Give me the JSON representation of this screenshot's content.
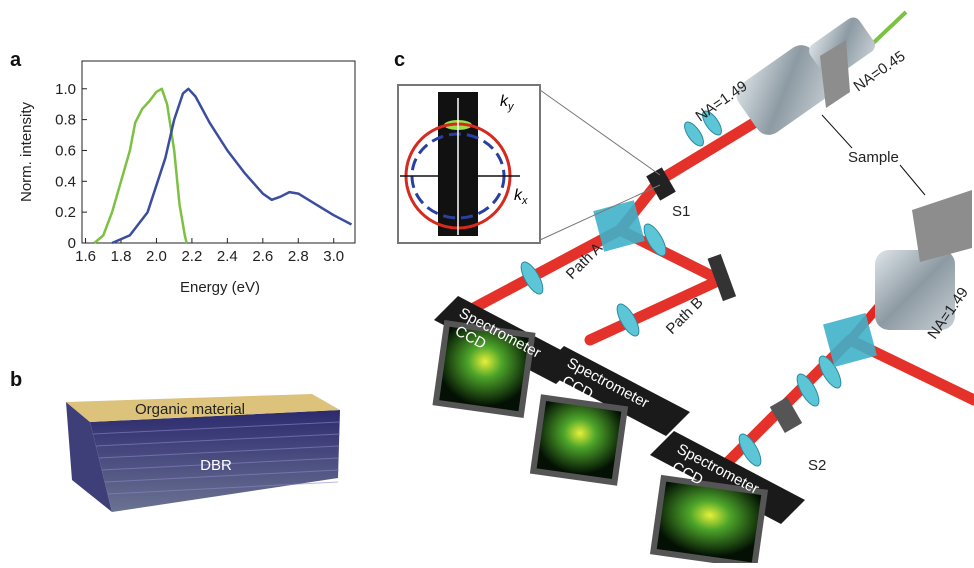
{
  "chart_data": {
    "type": "line",
    "panel_label": "a",
    "ylabel": "Norm. intensity",
    "xlabel": "Energy (eV)",
    "xlim": [
      1.58,
      3.12
    ],
    "ylim": [
      0,
      1.18
    ],
    "xticks": [
      1.6,
      1.8,
      {
        "value": 2.0,
        "label": "2.0"
      },
      2.2,
      2.4,
      2.6,
      2.8,
      {
        "value": 3.0,
        "label": "3.0"
      }
    ],
    "yticks": [
      0,
      0.2,
      0.4,
      0.6,
      0.8,
      {
        "value": 1.0,
        "label": "1.0"
      }
    ],
    "grid": false,
    "series": [
      {
        "color": "#7cc142",
        "x": [
          1.65,
          1.7,
          1.75,
          1.8,
          1.85,
          1.88,
          1.92,
          1.96,
          2.0,
          2.03,
          2.06,
          2.1,
          2.13,
          2.16,
          2.17
        ],
        "values": [
          0,
          0.05,
          0.2,
          0.4,
          0.6,
          0.78,
          0.87,
          0.92,
          0.98,
          1.0,
          0.9,
          0.6,
          0.25,
          0.05,
          0
        ]
      },
      {
        "color": "#3b4d9e",
        "x": [
          1.75,
          1.85,
          1.95,
          2.05,
          2.1,
          2.15,
          2.18,
          2.22,
          2.3,
          2.4,
          2.5,
          2.6,
          2.65,
          2.7,
          2.75,
          2.8,
          2.9,
          3.0,
          3.1
        ],
        "values": [
          0,
          0.05,
          0.2,
          0.55,
          0.8,
          0.97,
          1.0,
          0.95,
          0.78,
          0.6,
          0.45,
          0.32,
          0.28,
          0.3,
          0.33,
          0.32,
          0.25,
          0.18,
          0.12
        ]
      }
    ]
  },
  "panels": {
    "b": {
      "label": "b",
      "top_layer": "Organic material",
      "bottom_layer": "DBR"
    },
    "c": {
      "label": "c",
      "na_top": "NA=1.49",
      "na_in": "NA=0.45",
      "sample": "Sample",
      "s1": "S1",
      "s2": "S2",
      "path_a": "Path A",
      "path_b": "Path B",
      "spec1": "Spectrometer",
      "ccd1": "CCD",
      "spec2": "Spectrometer",
      "ccd2": "CCD",
      "spec3": "Spectrometer",
      "ccd3": "CCD",
      "na_right": "NA=1.49",
      "k": "k",
      "ky_sub": "y",
      "k2": "k",
      "kx_sub": "x"
    }
  }
}
